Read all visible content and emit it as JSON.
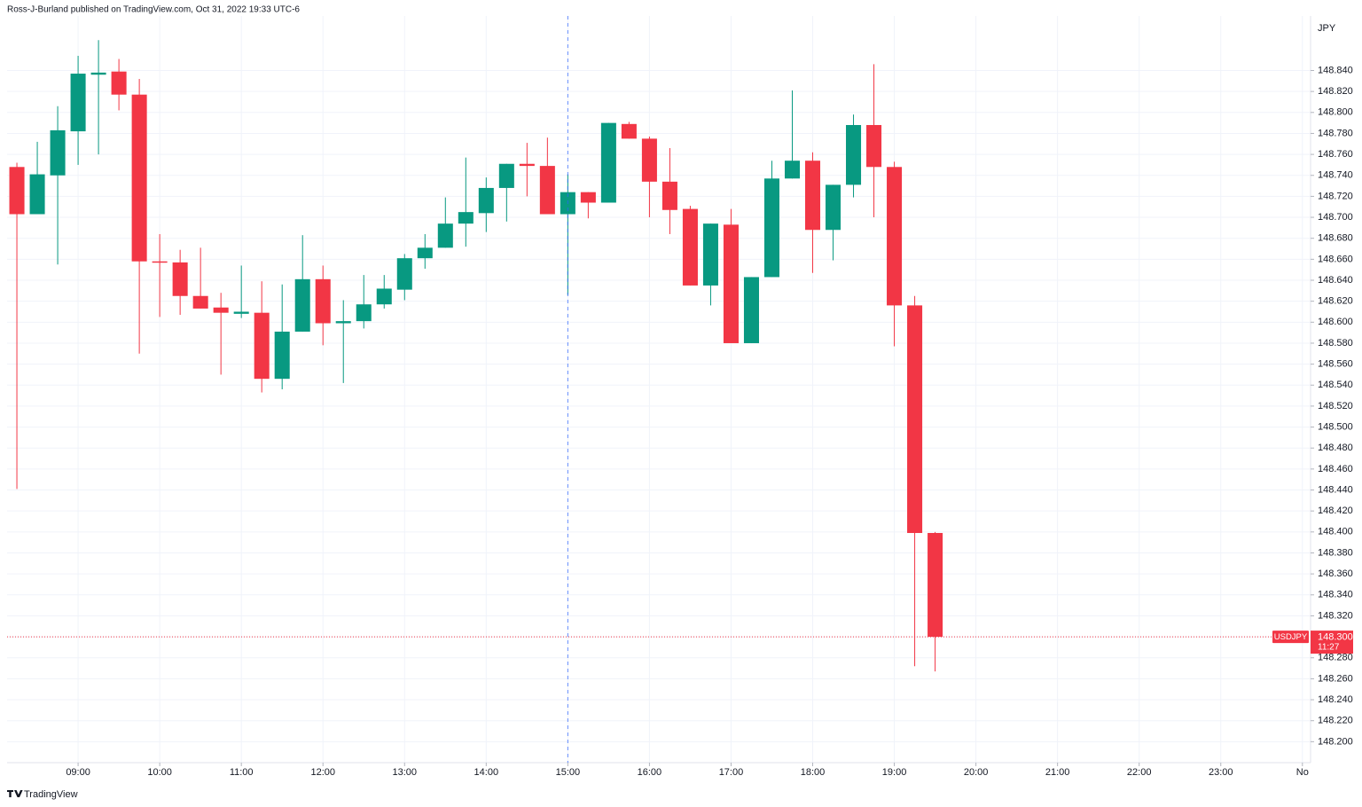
{
  "header": "Ross-J-Burland published on TradingView.com, Oct 31, 2022 19:33 UTC-6",
  "footer": "TradingView",
  "chart_data": {
    "type": "candlestick",
    "currency": "JPY",
    "symbol": "USDJPY",
    "countdown": "11:27",
    "last_price": {
      "value": 148.3,
      "label": "148.300"
    },
    "up_color": "#089981",
    "down_color": "#f23645",
    "grid": true,
    "crosshair_x": 15,
    "xlim": [
      8.13,
      24.1
    ],
    "xticks": [
      {
        "value": 9,
        "label": "09:00"
      },
      {
        "value": 10,
        "label": "10:00"
      },
      {
        "value": 11,
        "label": "11:00"
      },
      {
        "value": 12,
        "label": "12:00"
      },
      {
        "value": 13,
        "label": "13:00"
      },
      {
        "value": 14,
        "label": "14:00"
      },
      {
        "value": 15,
        "label": "15:00"
      },
      {
        "value": 16,
        "label": "16:00"
      },
      {
        "value": 17,
        "label": "17:00"
      },
      {
        "value": 18,
        "label": "18:00"
      },
      {
        "value": 19,
        "label": "19:00"
      },
      {
        "value": 20,
        "label": "20:00"
      },
      {
        "value": 21,
        "label": "21:00"
      },
      {
        "value": 22,
        "label": "22:00"
      },
      {
        "value": 23,
        "label": "23:00"
      },
      {
        "value": 24,
        "label": "No"
      }
    ],
    "ylim": [
      148.18,
      148.892
    ],
    "yticks": [
      {
        "value": 148.2,
        "label": "148.200"
      },
      {
        "value": 148.22,
        "label": "148.220"
      },
      {
        "value": 148.24,
        "label": "148.240"
      },
      {
        "value": 148.26,
        "label": "148.260"
      },
      {
        "value": 148.28,
        "label": "148.280"
      },
      {
        "value": 148.3,
        "label": "148.300"
      },
      {
        "value": 148.32,
        "label": "148.320"
      },
      {
        "value": 148.34,
        "label": "148.340"
      },
      {
        "value": 148.36,
        "label": "148.360"
      },
      {
        "value": 148.38,
        "label": "148.380"
      },
      {
        "value": 148.4,
        "label": "148.400"
      },
      {
        "value": 148.42,
        "label": "148.420"
      },
      {
        "value": 148.44,
        "label": "148.440"
      },
      {
        "value": 148.46,
        "label": "148.460"
      },
      {
        "value": 148.48,
        "label": "148.480"
      },
      {
        "value": 148.5,
        "label": "148.500"
      },
      {
        "value": 148.52,
        "label": "148.520"
      },
      {
        "value": 148.54,
        "label": "148.540"
      },
      {
        "value": 148.56,
        "label": "148.560"
      },
      {
        "value": 148.58,
        "label": "148.580"
      },
      {
        "value": 148.6,
        "label": "148.600"
      },
      {
        "value": 148.62,
        "label": "148.620"
      },
      {
        "value": 148.64,
        "label": "148.640"
      },
      {
        "value": 148.66,
        "label": "148.660"
      },
      {
        "value": 148.68,
        "label": "148.680"
      },
      {
        "value": 148.7,
        "label": "148.700"
      },
      {
        "value": 148.72,
        "label": "148.720"
      },
      {
        "value": 148.74,
        "label": "148.740"
      },
      {
        "value": 148.76,
        "label": "148.760"
      },
      {
        "value": 148.78,
        "label": "148.780"
      },
      {
        "value": 148.8,
        "label": "148.800"
      },
      {
        "value": 148.82,
        "label": "148.820"
      },
      {
        "value": 148.84,
        "label": "148.840"
      }
    ],
    "x": [
      8.25,
      8.5,
      8.75,
      9,
      9.25,
      9.5,
      9.75,
      10,
      10.25,
      10.5,
      10.75,
      11,
      11.25,
      11.5,
      11.75,
      12,
      12.25,
      12.5,
      12.75,
      13,
      13.25,
      13.5,
      13.75,
      14,
      14.25,
      14.5,
      14.75,
      15,
      15.25,
      15.5,
      15.75,
      16,
      16.25,
      16.5,
      16.75,
      17,
      17.25,
      17.5,
      17.75,
      18,
      18.25,
      18.5,
      18.75,
      19,
      19.25,
      19.5
    ],
    "open": [
      148.748,
      148.703,
      148.74,
      148.782,
      148.836,
      148.839,
      148.817,
      148.658,
      148.657,
      148.625,
      148.614,
      148.608,
      148.609,
      148.546,
      148.591,
      148.641,
      148.599,
      148.601,
      148.617,
      148.631,
      148.661,
      148.671,
      148.694,
      148.704,
      148.728,
      148.751,
      148.749,
      148.703,
      148.724,
      148.714,
      148.789,
      148.775,
      148.734,
      148.708,
      148.635,
      148.693,
      148.58,
      148.643,
      148.737,
      148.754,
      148.688,
      148.731,
      148.788,
      148.748,
      148.616,
      148.399
    ],
    "high": [
      148.752,
      148.772,
      148.806,
      148.854,
      148.869,
      148.851,
      148.832,
      148.684,
      148.669,
      148.671,
      148.628,
      148.654,
      148.639,
      148.636,
      148.683,
      148.654,
      148.621,
      148.645,
      148.645,
      148.665,
      148.684,
      148.719,
      148.757,
      148.738,
      148.751,
      148.771,
      148.776,
      148.741,
      148.724,
      148.79,
      148.791,
      148.777,
      148.766,
      148.711,
      148.694,
      148.708,
      148.643,
      148.754,
      148.821,
      148.762,
      148.731,
      148.798,
      148.846,
      148.753,
      148.625,
      148.4
    ],
    "low": [
      148.441,
      148.703,
      148.655,
      148.75,
      148.76,
      148.802,
      148.57,
      148.605,
      148.607,
      148.613,
      148.55,
      148.604,
      148.533,
      148.536,
      148.591,
      148.578,
      148.542,
      148.594,
      148.613,
      148.621,
      148.651,
      148.671,
      148.672,
      148.686,
      148.696,
      148.72,
      148.703,
      148.626,
      148.699,
      148.714,
      148.775,
      148.7,
      148.684,
      148.635,
      148.616,
      148.58,
      148.58,
      148.643,
      148.737,
      148.647,
      148.659,
      148.719,
      148.7,
      148.577,
      148.272,
      148.267
    ],
    "close": [
      148.703,
      148.741,
      148.783,
      148.837,
      148.838,
      148.817,
      148.658,
      148.657,
      148.625,
      148.613,
      148.609,
      148.61,
      148.546,
      148.591,
      148.641,
      148.599,
      148.601,
      148.617,
      148.632,
      148.661,
      148.671,
      148.694,
      148.705,
      148.728,
      148.751,
      148.749,
      148.703,
      148.724,
      148.714,
      148.79,
      148.775,
      148.734,
      148.707,
      148.635,
      148.694,
      148.58,
      148.643,
      148.737,
      148.754,
      148.688,
      148.731,
      148.788,
      148.748,
      148.616,
      148.399,
      148.3
    ]
  }
}
